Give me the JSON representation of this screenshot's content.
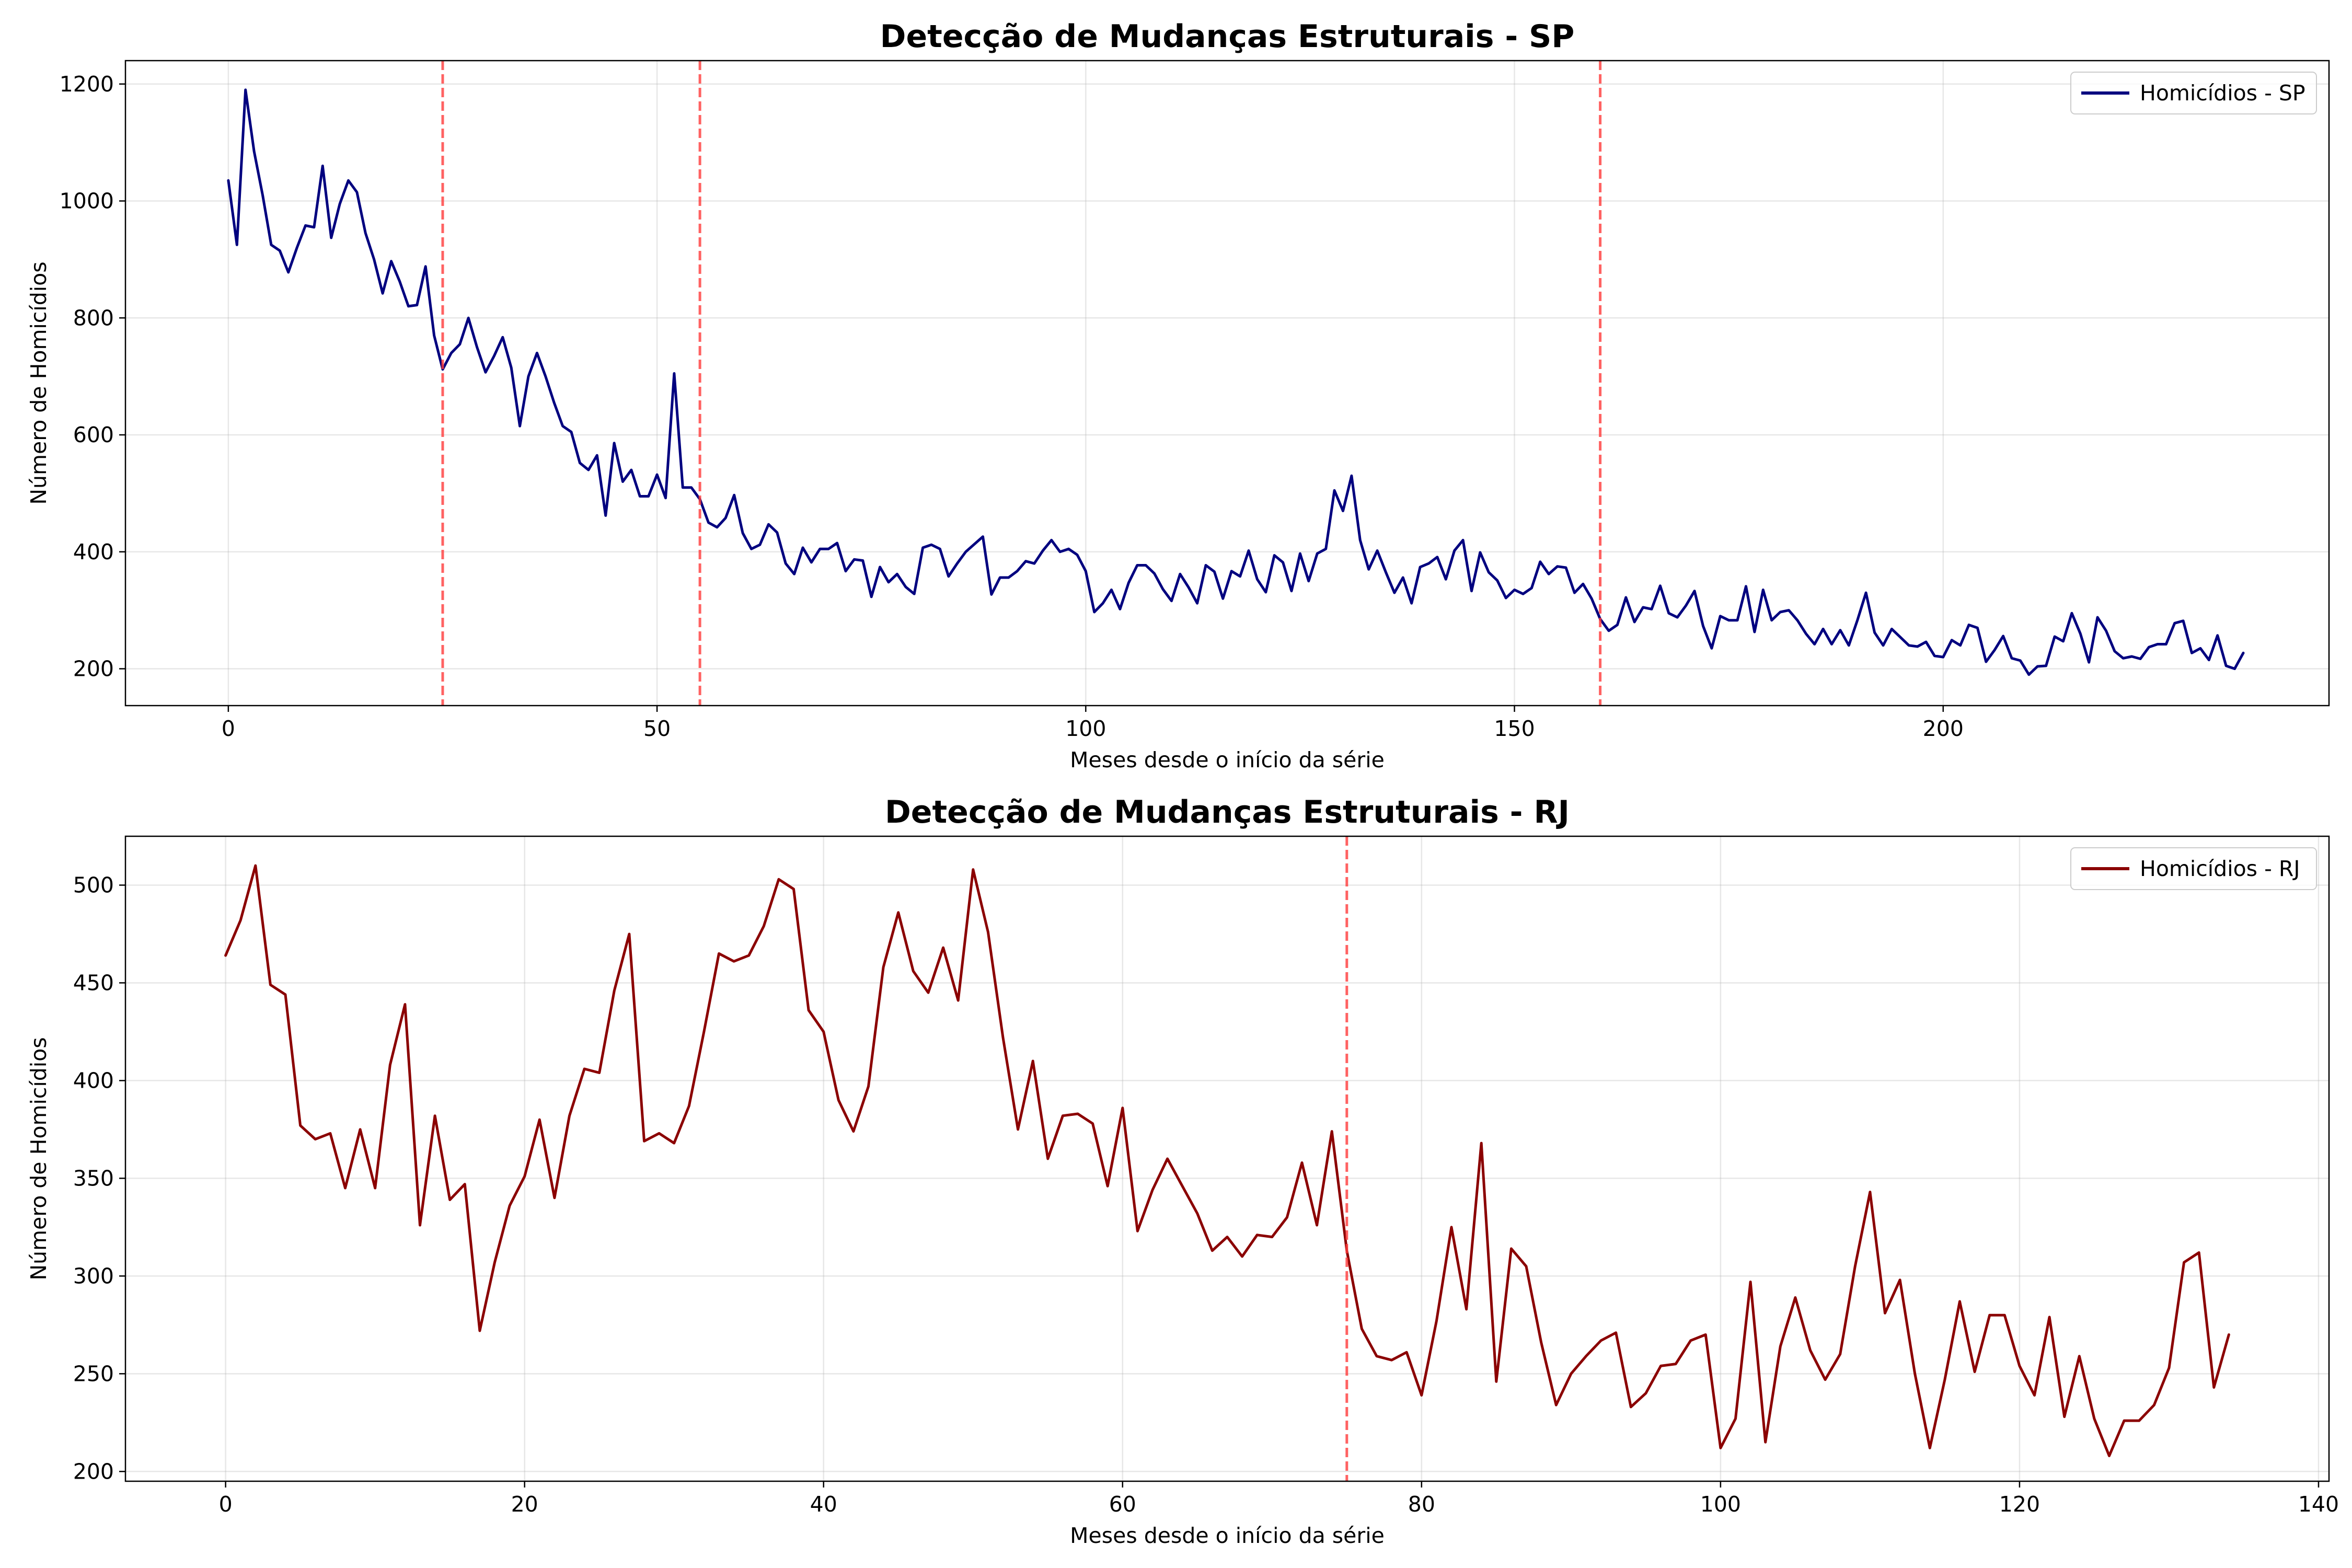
{
  "chart_data": [
    {
      "type": "line",
      "title": "Detecção de Mudanças Estruturais - SP",
      "xlabel": "Meses desde o início da série",
      "ylabel": "Número de Homicídios",
      "xlim": [
        -12,
        245
      ],
      "ylim": [
        137,
        1240
      ],
      "xticks": [
        0,
        50,
        100,
        150,
        200
      ],
      "yticks": [
        200,
        400,
        600,
        800,
        1000,
        1200
      ],
      "grid": true,
      "legend_placement": "top-right",
      "breakpoints": [
        25,
        55,
        160
      ],
      "breakpoint_color": "#ff3b3b",
      "series": [
        {
          "name": "Homicídios - SP",
          "color": "#00007f",
          "x": [
            0,
            1,
            2,
            3,
            4,
            5,
            6,
            7,
            8,
            9,
            10,
            11,
            12,
            13,
            14,
            15,
            16,
            17,
            18,
            19,
            20,
            21,
            22,
            23,
            24,
            25,
            26,
            27,
            28,
            29,
            30,
            31,
            32,
            33,
            34,
            35,
            36,
            37,
            38,
            39,
            40,
            41,
            42,
            43,
            44,
            45,
            46,
            47,
            48,
            49,
            50,
            51,
            52,
            53,
            54,
            55,
            56,
            57,
            58,
            59,
            60,
            61,
            62,
            63,
            64,
            65,
            66,
            67,
            68,
            69,
            70,
            71,
            72,
            73,
            74,
            75,
            76,
            77,
            78,
            79,
            80,
            81,
            82,
            83,
            84,
            85,
            86,
            87,
            88,
            89,
            90,
            91,
            92,
            93,
            94,
            95,
            96,
            97,
            98,
            99,
            100,
            101,
            102,
            103,
            104,
            105,
            106,
            107,
            108,
            109,
            110,
            111,
            112,
            113,
            114,
            115,
            116,
            117,
            118,
            119,
            120,
            121,
            122,
            123,
            124,
            125,
            126,
            127,
            128,
            129,
            130,
            131,
            132,
            133,
            134,
            135,
            136,
            137,
            138,
            139,
            140,
            141,
            142,
            143,
            144,
            145,
            146,
            147,
            148,
            149,
            150,
            151,
            152,
            153,
            154,
            155,
            156,
            157,
            158,
            159,
            160,
            161,
            162,
            163,
            164,
            165,
            166,
            167,
            168,
            169,
            170,
            171,
            172,
            173,
            174,
            175,
            176,
            177,
            178,
            179,
            180,
            181,
            182,
            183,
            184,
            185,
            186,
            187,
            188,
            189,
            190,
            191,
            192,
            193,
            194,
            195,
            196,
            197,
            198,
            199,
            200,
            201,
            202,
            203,
            204,
            205,
            206,
            207,
            208,
            209,
            210,
            211,
            212,
            213,
            214,
            215,
            216,
            217,
            218,
            219,
            220,
            221,
            222,
            223,
            224,
            225,
            226,
            227,
            228,
            229,
            230,
            231,
            232,
            233,
            234,
            235
          ],
          "values": [
            1035,
            925,
            1190,
            1085,
            1010,
            925,
            915,
            878,
            920,
            958,
            955,
            1060,
            937,
            995,
            1035,
            1015,
            945,
            900,
            842,
            897,
            862,
            820,
            822,
            888,
            770,
            712,
            740,
            755,
            800,
            750,
            707,
            735,
            767,
            715,
            615,
            700,
            740,
            700,
            655,
            615,
            605,
            552,
            540,
            565,
            462,
            586,
            520,
            540,
            495,
            495,
            532,
            492,
            705,
            510,
            510,
            490,
            450,
            442,
            458,
            497,
            432,
            405,
            412,
            447,
            433,
            380,
            362,
            407,
            382,
            405,
            405,
            415,
            367,
            387,
            385,
            323,
            374,
            348,
            362,
            340,
            328,
            407,
            412,
            405,
            358,
            380,
            400,
            413,
            426,
            327,
            356,
            356,
            367,
            384,
            380,
            402,
            420,
            400,
            405,
            395,
            367,
            297,
            312,
            335,
            302,
            347,
            377,
            377,
            363,
            336,
            316,
            362,
            339,
            312,
            377,
            366,
            320,
            367,
            358,
            402,
            353,
            331,
            394,
            382,
            333,
            397,
            350,
            397,
            405,
            505,
            470,
            530,
            420,
            370,
            402,
            365,
            330,
            356,
            312,
            374,
            380,
            391,
            353,
            402,
            420,
            333,
            399,
            365,
            351,
            321,
            335,
            328,
            338,
            383,
            362,
            375,
            373,
            330,
            345,
            320,
            285,
            265,
            275,
            322,
            280,
            305,
            302,
            342,
            295,
            288,
            308,
            333,
            273,
            235,
            290,
            283,
            283,
            341,
            263,
            335,
            283,
            297,
            300,
            283,
            260,
            242,
            268,
            242,
            266,
            240,
            283,
            330,
            262,
            240,
            268,
            254,
            240,
            238,
            246,
            222,
            220,
            249,
            240,
            275,
            270,
            212,
            232,
            256,
            218,
            214,
            190,
            204,
            205,
            255,
            247,
            295,
            260,
            211,
            288,
            265,
            230,
            218,
            221,
            217,
            237,
            242,
            242,
            278,
            282,
            227,
            235,
            215,
            257,
            205,
            200,
            227
          ]
        }
      ]
    },
    {
      "type": "line",
      "title": "Detecção de Mudanças Estruturais - RJ",
      "xlabel": "Meses desde o início da série",
      "ylabel": "Número de Homicídios",
      "xlim": [
        -6.7,
        140.7
      ],
      "ylim": [
        195,
        525
      ],
      "xticks": [
        0,
        20,
        40,
        60,
        80,
        100,
        120,
        140
      ],
      "yticks": [
        200,
        250,
        300,
        350,
        400,
        450,
        500
      ],
      "grid": true,
      "legend_placement": "top-right",
      "breakpoints": [
        75
      ],
      "breakpoint_color": "#ff3b3b",
      "series": [
        {
          "name": "Homicídios - RJ",
          "color": "#8b0000",
          "x": [
            0,
            1,
            2,
            3,
            4,
            5,
            6,
            7,
            8,
            9,
            10,
            11,
            12,
            13,
            14,
            15,
            16,
            17,
            18,
            19,
            20,
            21,
            22,
            23,
            24,
            25,
            26,
            27,
            28,
            29,
            30,
            31,
            32,
            33,
            34,
            35,
            36,
            37,
            38,
            39,
            40,
            41,
            42,
            43,
            44,
            45,
            46,
            47,
            48,
            49,
            50,
            51,
            52,
            53,
            54,
            55,
            56,
            57,
            58,
            59,
            60,
            61,
            62,
            63,
            64,
            65,
            66,
            67,
            68,
            69,
            70,
            71,
            72,
            73,
            74,
            75,
            76,
            77,
            78,
            79,
            80,
            81,
            82,
            83,
            84,
            85,
            86,
            87,
            88,
            89,
            90,
            91,
            92,
            93,
            94,
            95,
            96,
            97,
            98,
            99,
            100,
            101,
            102,
            103,
            104,
            105,
            106,
            107,
            108,
            109,
            110,
            111,
            112,
            113,
            114,
            115,
            116,
            117,
            118,
            119,
            120,
            121,
            122,
            123,
            124,
            125,
            126,
            127,
            128,
            129,
            130,
            131,
            132,
            133,
            134
          ],
          "values": [
            464,
            482,
            510,
            449,
            444,
            377,
            370,
            373,
            345,
            375,
            345,
            408,
            439,
            326,
            382,
            339,
            347,
            272,
            307,
            336,
            351,
            380,
            340,
            382,
            406,
            404,
            446,
            475,
            369,
            373,
            368,
            387,
            425,
            465,
            461,
            464,
            479,
            503,
            498,
            436,
            425,
            390,
            374,
            397,
            458,
            486,
            456,
            445,
            468,
            441,
            508,
            476,
            422,
            375,
            410,
            360,
            382,
            383,
            378,
            346,
            386,
            323,
            344,
            360,
            346,
            332,
            313,
            320,
            310,
            321,
            320,
            330,
            358,
            326,
            374,
            313,
            273,
            259,
            257,
            261,
            239,
            277,
            325,
            283,
            368,
            246,
            314,
            305,
            266,
            234,
            250,
            259,
            267,
            271,
            233,
            240,
            254,
            255,
            267,
            270,
            212,
            227,
            297,
            215,
            264,
            289,
            262,
            247,
            260,
            305,
            343,
            281,
            298,
            250,
            212,
            247,
            287,
            251,
            280,
            280,
            254,
            239,
            279,
            228,
            259,
            227,
            208,
            226,
            226,
            234,
            253,
            307,
            312,
            243,
            270
          ]
        }
      ]
    }
  ]
}
